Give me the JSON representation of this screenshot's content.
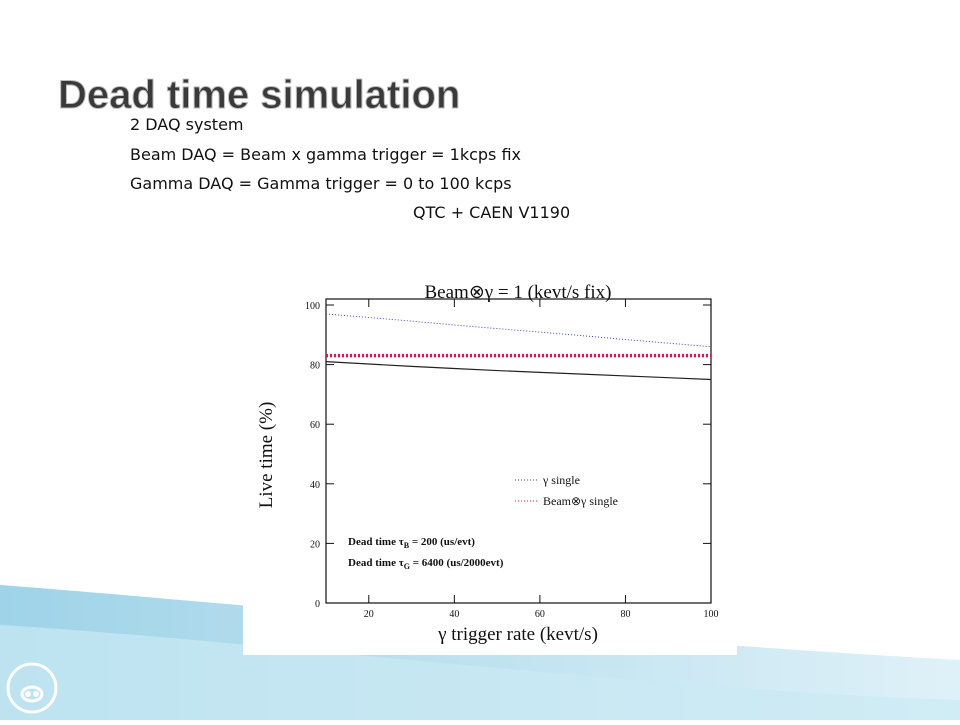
{
  "slide": {
    "title": "Dead time simulation",
    "lines": [
      "2 DAQ system",
      "Beam DAQ = Beam x gamma trigger = 1kcps fix",
      "Gamma DAQ = Gamma trigger = 0 to 100 kcps",
      "QTC + CAEN V1190"
    ]
  },
  "chart_data": {
    "type": "line",
    "title": "Beam⊗γ = 1 (kevt/s fix)",
    "x_label": "γ trigger rate (kevt/s)",
    "y_label": "Live time (%)",
    "x": [
      10,
      20,
      30,
      40,
      50,
      60,
      70,
      80,
      90,
      100
    ],
    "series": [
      {
        "name": "γ single",
        "color": "#3344cc",
        "style": "dotted",
        "values": [
          97,
          95.8,
          94.6,
          93.3,
          92.1,
          90.9,
          89.7,
          88.4,
          87.2,
          86
        ]
      },
      {
        "name": "Beam⊗γ single",
        "color": "#e8104a",
        "style": "dotted-bold",
        "values": [
          83,
          83,
          83,
          83,
          83,
          83,
          83,
          83,
          83,
          83
        ]
      },
      {
        "color": "#222222",
        "style": "solid",
        "values": [
          81,
          80.2,
          79.4,
          78.7,
          78,
          77.4,
          76.8,
          76.2,
          75.6,
          75
        ]
      }
    ],
    "annotations": [
      [
        "Dead time τ",
        "B",
        " = 200 (us/evt)"
      ],
      [
        "Dead time τ",
        "G",
        " = 6400 (us/2000evt)"
      ]
    ],
    "xlim": [
      10,
      100
    ],
    "ylim": [
      0,
      100
    ],
    "xticks": [
      20,
      40,
      60,
      80,
      100
    ],
    "yticks": [
      0,
      20,
      40,
      60,
      80,
      100
    ]
  }
}
